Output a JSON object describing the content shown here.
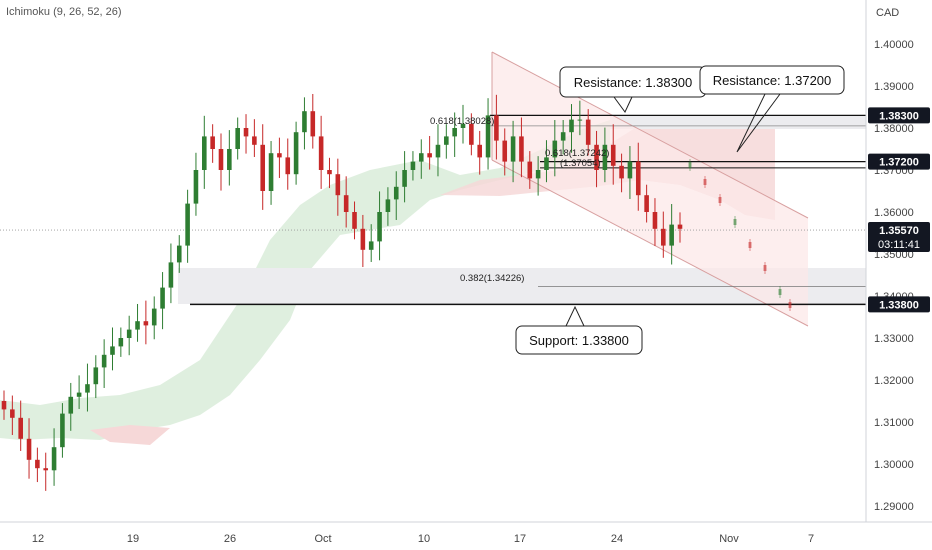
{
  "chart_data": {
    "type": "candlestick",
    "indicator_label": "Ichimoku (9, 26, 52, 26)",
    "currency_label": "CAD",
    "ylim": [
      1.285,
      1.407
    ],
    "y_ticks": [
      "1.29000",
      "1.30000",
      "1.31000",
      "1.32000",
      "1.33000",
      "1.34000",
      "1.35000",
      "1.36000",
      "1.37000",
      "1.38000",
      "1.39000",
      "1.40000"
    ],
    "x_ticks": [
      "12",
      "19",
      "26",
      "Oct",
      "10",
      "17",
      "24",
      "Nov",
      "7"
    ],
    "current_price": "1.35570",
    "countdown": "03:11:41",
    "levels": [
      {
        "price": 1.383,
        "label": "1.38300"
      },
      {
        "price": 1.372,
        "label": "1.37200"
      },
      {
        "price": 1.338,
        "label": "1.33800"
      }
    ],
    "callouts": {
      "resistance_1": "Resistance: 1.38300",
      "resistance_2": "Resistance: 1.37200",
      "support": "Support: 1.33800"
    },
    "fib_labels": {
      "fib_high": "0.618(1.38028)",
      "fib_mid": "0.618(1.37242)",
      "fib_mid_sub": "(1.37054)",
      "fib_low": "0.382(1.34226)"
    },
    "anchor_dates": [
      "12",
      "19",
      "26",
      "Oct",
      "10",
      "17",
      "24",
      "Nov"
    ],
    "closes": [
      1.313,
      1.311,
      1.306,
      1.301,
      1.299,
      1.2985,
      1.304,
      1.312,
      1.316,
      1.317,
      1.319,
      1.323,
      1.326,
      1.328,
      1.33,
      1.332,
      1.334,
      1.333,
      1.337,
      1.342,
      1.348,
      1.352,
      1.362,
      1.37,
      1.378,
      1.375,
      1.37,
      1.375,
      1.38,
      1.378,
      1.376,
      1.365,
      1.374,
      1.373,
      1.369,
      1.379,
      1.384,
      1.378,
      1.37,
      1.369,
      1.364,
      1.36,
      1.356,
      1.351,
      1.353,
      1.36,
      1.363,
      1.366,
      1.37,
      1.372,
      1.374,
      1.373,
      1.376,
      1.378,
      1.38,
      1.381,
      1.376,
      1.373,
      1.383,
      1.377,
      1.372,
      1.378,
      1.372,
      1.368,
      1.37,
      1.373,
      1.377,
      1.379,
      1.382,
      1.382,
      1.376,
      1.37,
      1.376,
      1.371,
      1.368,
      1.372,
      1.364,
      1.36,
      1.356,
      1.352,
      1.357,
      1.356
    ],
    "colors": {
      "bull": "#2e7d32",
      "bear": "#c62828",
      "channel_fill": "#fce8e8",
      "channel_line": "#d8a0a0",
      "cloud_green": "#d9ecd9",
      "cloud_red": "#f6d8d8",
      "zone_grey": "#ececef",
      "badge": "#131722"
    }
  }
}
